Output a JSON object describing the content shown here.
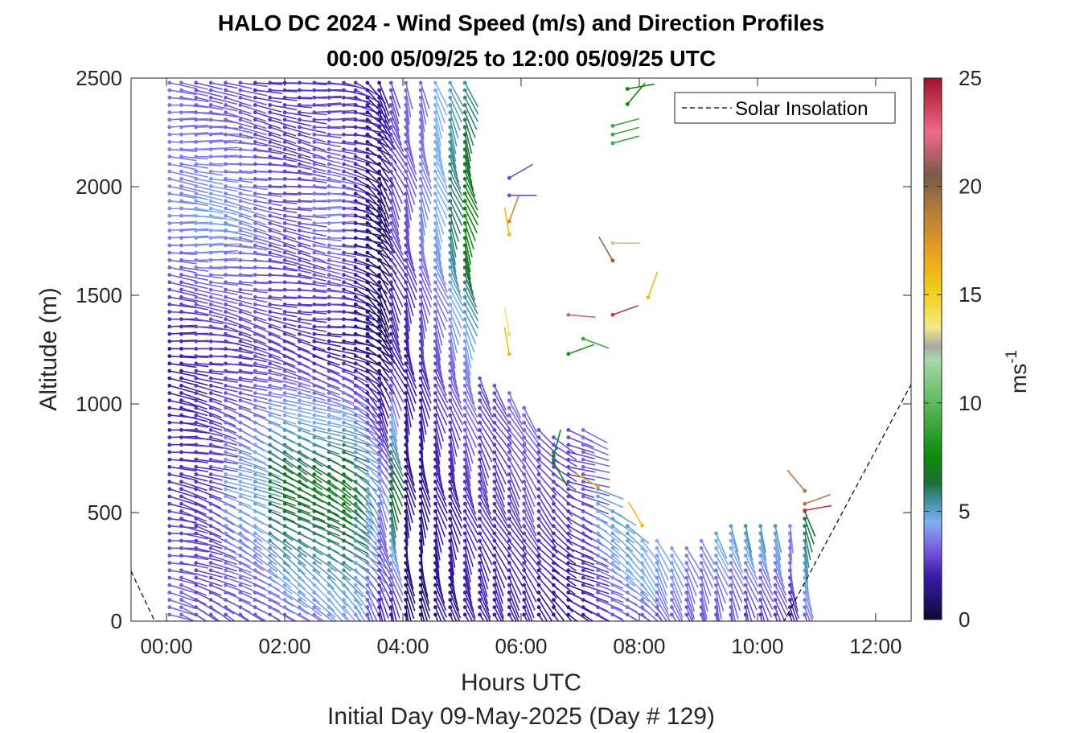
{
  "chart_data": {
    "type": "quiver",
    "title": "HALO DC 2024 - Wind Speed (m/s) and Direction Profiles",
    "subtitle": "00:00 05/09/25 to 12:00 05/09/25  UTC",
    "xlabel": "Hours UTC",
    "ylabel": "Altitude (m)",
    "footer": "Initial Day 09-May-2025 (Day # 129)",
    "x_ticks": [
      "00:00",
      "02:00",
      "04:00",
      "06:00",
      "08:00",
      "10:00",
      "12:00"
    ],
    "x_tick_hours": [
      0,
      2,
      4,
      6,
      8,
      10,
      12
    ],
    "y_ticks": [
      "0",
      "500",
      "1000",
      "1500",
      "2000",
      "2500"
    ],
    "y_tick_values": [
      0,
      500,
      1000,
      1500,
      2000,
      2500
    ],
    "xlim_hours": [
      -0.6,
      12.6
    ],
    "ylim": [
      0,
      2500
    ],
    "colorbar": {
      "label": "ms",
      "label_exponent": "-1",
      "ticks": [
        "0",
        "5",
        "10",
        "15",
        "20",
        "25"
      ],
      "tick_values": [
        0,
        5,
        10,
        15,
        20,
        25
      ],
      "range": [
        0,
        25
      ],
      "stops": [
        {
          "v": 0,
          "c": "#0b0b33"
        },
        {
          "v": 2,
          "c": "#3a1aa8"
        },
        {
          "v": 3.3,
          "c": "#7a5fe0"
        },
        {
          "v": 4.5,
          "c": "#7fb0f2"
        },
        {
          "v": 5.5,
          "c": "#3f8f9a"
        },
        {
          "v": 6.3,
          "c": "#1f6e3a"
        },
        {
          "v": 7.5,
          "c": "#0a8a0a"
        },
        {
          "v": 10,
          "c": "#5fb85f"
        },
        {
          "v": 12,
          "c": "#a8d8a8"
        },
        {
          "v": 12.6,
          "c": "#a8a8a8"
        },
        {
          "v": 13.5,
          "c": "#f3e88a"
        },
        {
          "v": 15,
          "c": "#f2d21a"
        },
        {
          "v": 17,
          "c": "#e8a020"
        },
        {
          "v": 19,
          "c": "#b07a3a"
        },
        {
          "v": 20.5,
          "c": "#7a5a4a"
        },
        {
          "v": 22.5,
          "c": "#f06a8a"
        },
        {
          "v": 25,
          "c": "#a0102a"
        }
      ]
    },
    "legend": {
      "entries": [
        "Solar Insolation"
      ],
      "location": "top-right"
    },
    "solar_insolation": {
      "style": "dashed",
      "x_hours": [
        -0.6,
        -0.2,
        10.45,
        12.6
      ],
      "y": [
        230,
        0,
        0,
        1090
      ]
    },
    "profiles": [
      {
        "t": 0.05,
        "top": 2480,
        "dir0": 100,
        "dir1": 95,
        "s": [
          3.5,
          2.5,
          2,
          4,
          3.5
        ]
      },
      {
        "t": 0.25,
        "top": 2480,
        "dir0": 110,
        "dir1": 95,
        "s": [
          3.5,
          2.5,
          2,
          4,
          3.5
        ]
      },
      {
        "t": 0.5,
        "top": 2480,
        "dir0": 115,
        "dir1": 95,
        "s": [
          3,
          2.5,
          2.5,
          4.5,
          3
        ]
      },
      {
        "t": 0.75,
        "top": 2480,
        "dir0": 120,
        "dir1": 95,
        "s": [
          3,
          3,
          2.5,
          4.5,
          3
        ]
      },
      {
        "t": 1.0,
        "top": 2480,
        "dir0": 120,
        "dir1": 100,
        "s": [
          3,
          4.5,
          2.5,
          4,
          3
        ]
      },
      {
        "t": 1.25,
        "top": 2480,
        "dir0": 125,
        "dir1": 100,
        "s": [
          3,
          4.5,
          2.5,
          4,
          3
        ]
      },
      {
        "t": 1.5,
        "top": 2480,
        "dir0": 125,
        "dir1": 100,
        "s": [
          3,
          5,
          3,
          3.5,
          2.5
        ]
      },
      {
        "t": 1.75,
        "top": 2480,
        "dir0": 130,
        "dir1": 100,
        "s": [
          3,
          7,
          2.5,
          3,
          2.5
        ]
      },
      {
        "t": 2.0,
        "top": 2480,
        "dir0": 130,
        "dir1": 100,
        "s": [
          3.5,
          7,
          2.5,
          3,
          2.5
        ]
      },
      {
        "t": 2.25,
        "top": 2480,
        "dir0": 130,
        "dir1": 100,
        "s": [
          3.5,
          7,
          2.5,
          3,
          2.5
        ]
      },
      {
        "t": 2.5,
        "top": 2480,
        "dir0": 130,
        "dir1": 95,
        "s": [
          3.5,
          7,
          2,
          4,
          2.5
        ]
      },
      {
        "t": 2.75,
        "top": 2480,
        "dir0": 135,
        "dir1": 95,
        "s": [
          4,
          7,
          2,
          4,
          2.5
        ]
      },
      {
        "t": 3.0,
        "top": 2480,
        "dir0": 135,
        "dir1": 100,
        "s": [
          4,
          7.5,
          2,
          3,
          2.5
        ]
      },
      {
        "t": 3.2,
        "top": 2480,
        "dir0": 140,
        "dir1": 110,
        "s": [
          4,
          6,
          1.5,
          2,
          2.5
        ]
      },
      {
        "t": 3.4,
        "top": 2480,
        "dir0": 150,
        "dir1": 130,
        "s": [
          3,
          5,
          1,
          1,
          2
        ]
      },
      {
        "t": 3.6,
        "top": 2480,
        "dir0": 160,
        "dir1": 150,
        "s": [
          2,
          4,
          1,
          1,
          2
        ]
      },
      {
        "t": 3.8,
        "top": 2480,
        "dir0": 165,
        "dir1": 155,
        "s": [
          1.5,
          7,
          2,
          3,
          3
        ]
      },
      {
        "t": 4.05,
        "top": 2480,
        "dir0": 170,
        "dir1": 165,
        "s": [
          1,
          1.5,
          2,
          3,
          3.5
        ]
      },
      {
        "t": 4.3,
        "top": 2480,
        "dir0": 170,
        "dir1": 165,
        "s": [
          1,
          1.5,
          2.5,
          4,
          3.5
        ]
      },
      {
        "t": 4.55,
        "top": 2480,
        "dir0": 165,
        "dir1": 160,
        "s": [
          1.5,
          2,
          3,
          4.5,
          4.5
        ]
      },
      {
        "t": 4.8,
        "top": 2480,
        "dir0": 165,
        "dir1": 160,
        "s": [
          1.5,
          2,
          3.5,
          6,
          5
        ]
      },
      {
        "t": 5.05,
        "top": 2480,
        "dir0": 160,
        "dir1": 160,
        "s": [
          2,
          2.5,
          4,
          7.5,
          5.5
        ]
      },
      {
        "t": 5.3,
        "top": 1150,
        "dir0": 155,
        "dir1": 155,
        "s": [
          2,
          2.5,
          3
        ]
      },
      {
        "t": 5.55,
        "top": 1100,
        "dir0": 155,
        "dir1": 150,
        "s": [
          2,
          2.5,
          3
        ]
      },
      {
        "t": 5.8,
        "top": 1050,
        "dir0": 150,
        "dir1": 150,
        "s": [
          2,
          2.5,
          3.5
        ]
      },
      {
        "t": 6.05,
        "top": 1000,
        "dir0": 150,
        "dir1": 150,
        "s": [
          2,
          3,
          3.5
        ]
      },
      {
        "t": 6.3,
        "top": 900,
        "dir0": 140,
        "dir1": 140,
        "s": [
          1.5,
          2.5,
          3
        ]
      },
      {
        "t": 6.55,
        "top": 850,
        "dir0": 135,
        "dir1": 130,
        "s": [
          1.5,
          2.5,
          3
        ]
      },
      {
        "t": 6.8,
        "top": 880,
        "dir0": 120,
        "dir1": 110,
        "s": [
          1.5,
          2.5,
          3
        ]
      },
      {
        "t": 7.05,
        "top": 880,
        "dir0": 120,
        "dir1": 110,
        "s": [
          2,
          3,
          3.5
        ]
      },
      {
        "t": 7.3,
        "top": 620,
        "dir0": 120,
        "dir1": 120,
        "s": [
          2.5,
          4,
          5
        ]
      },
      {
        "t": 7.55,
        "top": 520,
        "dir0": 125,
        "dir1": 125,
        "s": [
          3,
          4.5,
          5
        ]
      },
      {
        "t": 7.8,
        "top": 450,
        "dir0": 130,
        "dir1": 130,
        "s": [
          3,
          4.5,
          5
        ]
      },
      {
        "t": 8.05,
        "top": 400,
        "dir0": 140,
        "dir1": 140,
        "s": [
          3,
          4.5,
          4.5
        ]
      },
      {
        "t": 8.3,
        "top": 380,
        "dir0": 150,
        "dir1": 150,
        "s": [
          3,
          4,
          4.5
        ]
      },
      {
        "t": 8.55,
        "top": 360,
        "dir0": 150,
        "dir1": 150,
        "s": [
          3,
          4,
          4.5
        ]
      },
      {
        "t": 8.8,
        "top": 360,
        "dir0": 155,
        "dir1": 155,
        "s": [
          3,
          3.5,
          4
        ]
      },
      {
        "t": 9.05,
        "top": 380,
        "dir0": 160,
        "dir1": 160,
        "s": [
          3,
          3.5,
          4
        ]
      },
      {
        "t": 9.3,
        "top": 420,
        "dir0": 165,
        "dir1": 160,
        "s": [
          3,
          3.5,
          5
        ]
      },
      {
        "t": 9.55,
        "top": 440,
        "dir0": 165,
        "dir1": 160,
        "s": [
          3,
          3.5,
          5
        ]
      },
      {
        "t": 9.8,
        "top": 450,
        "dir0": 165,
        "dir1": 160,
        "s": [
          2.5,
          3.5,
          5.5
        ]
      },
      {
        "t": 10.05,
        "top": 470,
        "dir0": 165,
        "dir1": 160,
        "s": [
          2.5,
          3.5,
          5.5
        ]
      },
      {
        "t": 10.3,
        "top": 470,
        "dir0": 165,
        "dir1": 160,
        "s": [
          2.5,
          3.5,
          5.5
        ]
      },
      {
        "t": 10.55,
        "top": 460,
        "dir0": 170,
        "dir1": 170,
        "s": [
          2,
          3,
          4
        ]
      },
      {
        "t": 10.8,
        "top": 520,
        "dir0": 170,
        "dir1": 165,
        "s": [
          3,
          5,
          6.5
        ]
      }
    ],
    "isolated_vectors": [
      {
        "t": 7.8,
        "alt": 2450,
        "dir": 80,
        "s": 7.5
      },
      {
        "t": 7.8,
        "alt": 2380,
        "dir": 40,
        "s": 7.5
      },
      {
        "t": 7.55,
        "alt": 2280,
        "dir": 75,
        "s": 9
      },
      {
        "t": 7.55,
        "alt": 2240,
        "dir": 75,
        "s": 9
      },
      {
        "t": 7.55,
        "alt": 2200,
        "dir": 75,
        "s": 9
      },
      {
        "t": 7.55,
        "alt": 1740,
        "dir": 90,
        "s": 13
      },
      {
        "t": 7.55,
        "alt": 1660,
        "dir": 330,
        "s": 20
      },
      {
        "t": 8.15,
        "alt": 1490,
        "dir": 20,
        "s": 16
      },
      {
        "t": 7.55,
        "alt": 1410,
        "dir": 70,
        "s": 24
      },
      {
        "t": 6.8,
        "alt": 1410,
        "dir": 95,
        "s": 22
      },
      {
        "t": 7.05,
        "alt": 1300,
        "dir": 110,
        "s": 9
      },
      {
        "t": 6.8,
        "alt": 1230,
        "dir": 70,
        "s": 8
      },
      {
        "t": 5.8,
        "alt": 1960,
        "dir": 90,
        "s": 3
      },
      {
        "t": 5.8,
        "alt": 2040,
        "dir": 60,
        "s": 3
      },
      {
        "t": 5.8,
        "alt": 1780,
        "dir": 350,
        "s": 16
      },
      {
        "t": 5.8,
        "alt": 1840,
        "dir": 20,
        "s": 18
      },
      {
        "t": 5.8,
        "alt": 1320,
        "dir": 350,
        "s": 14
      },
      {
        "t": 5.8,
        "alt": 1230,
        "dir": 350,
        "s": 16
      },
      {
        "t": 6.55,
        "alt": 760,
        "dir": 15,
        "s": 7.5
      },
      {
        "t": 6.55,
        "alt": 730,
        "dir": 150,
        "s": 7
      },
      {
        "t": 7.3,
        "alt": 620,
        "dir": 300,
        "s": 17
      },
      {
        "t": 8.05,
        "alt": 440,
        "dir": 330,
        "s": 16
      },
      {
        "t": 10.8,
        "alt": 510,
        "dir": 80,
        "s": 24
      },
      {
        "t": 10.8,
        "alt": 540,
        "dir": 70,
        "s": 19
      },
      {
        "t": 10.8,
        "alt": 600,
        "dir": 320,
        "s": 19
      }
    ]
  }
}
